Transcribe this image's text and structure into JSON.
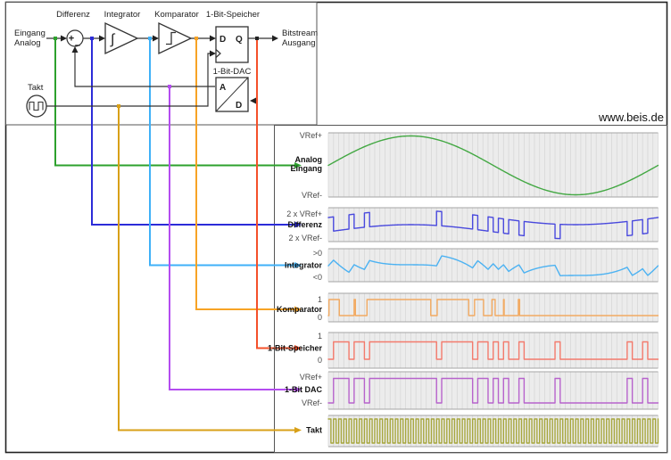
{
  "watermark": "www.beis.de",
  "block_diagram": {
    "input_label_lines": [
      "Eingang",
      "Analog"
    ],
    "output_label_lines": [
      "Bitstream",
      "Ausgang"
    ],
    "blocks": {
      "differenz": "Differenz",
      "integrator": "Integrator",
      "komparator": "Komparator",
      "speicher": "1-Bit-Speicher",
      "dac": "1-Bit-DAC",
      "takt": "Takt"
    },
    "flipflop_pins": {
      "d": "D",
      "q": "Q"
    },
    "dac_pins": {
      "a": "A",
      "d": "D"
    },
    "summer_plus": "+",
    "summer_minus": "−",
    "integrator_glyph": "∫"
  },
  "colors": {
    "wires": {
      "analog": "#2da12d",
      "differenz": "#2c2cd8",
      "integrator": "#3fb1f8",
      "komparator": "#f7a325",
      "speicher": "#f4502a",
      "dac": "#b44cf0",
      "takt": "#d8a018"
    },
    "traces": {
      "analog": "#43a843",
      "differenz": "#4949dd",
      "integrator": "#4cb2f2",
      "komparator": "#f2aa62",
      "speicher": "#f37a6c",
      "dac": "#b763cc",
      "takt": "#a6a63c"
    },
    "grid_bg": "#ececec",
    "grid_line": "#d7d7d7",
    "grid_edge": "#a5a5a5",
    "border": "#555555"
  },
  "chart_data": {
    "type": "line",
    "subtype": "multi-panel timing diagram of a first-order delta-sigma modulator",
    "clock_cycles": 64,
    "sine_periods": 1,
    "integrator_gain": 0.5,
    "integrator_initial": -0.05,
    "bitstream": [
      0,
      1,
      1,
      1,
      0,
      1,
      1,
      0,
      1,
      1,
      1,
      1,
      1,
      1,
      1,
      1,
      1,
      1,
      1,
      1,
      1,
      0,
      1,
      1,
      1,
      1,
      1,
      1,
      0,
      1,
      1,
      0,
      1,
      0,
      1,
      0,
      0,
      1,
      0,
      0,
      0,
      0,
      0,
      0,
      1,
      0,
      0,
      0,
      0,
      0,
      0,
      0,
      0,
      0,
      0,
      0,
      0,
      0,
      1,
      0,
      0,
      1,
      0,
      0
    ],
    "panels": [
      {
        "name": "Analog Eingang",
        "name_lines": [
          "Analog",
          "Eingang"
        ],
        "kind": "sine",
        "top_label": "VRef+",
        "bottom_label": "VRef-"
      },
      {
        "name": "Differenz",
        "name_lines": [
          "Differenz"
        ],
        "kind": "difference",
        "top_label": "2 x VRef+",
        "bottom_label": "2 x VRef-"
      },
      {
        "name": "Integrator",
        "name_lines": [
          "Integrator"
        ],
        "kind": "integral",
        "top_label": ">0",
        "bottom_label": "<0"
      },
      {
        "name": "Komparator",
        "name_lines": [
          "Komparator"
        ],
        "kind": "comparator",
        "top_label": "1",
        "bottom_label": "0"
      },
      {
        "name": "1-Bit-Speicher",
        "name_lines": [
          "1-Bit-Speicher"
        ],
        "kind": "bits",
        "top_label": "1",
        "bottom_label": "0"
      },
      {
        "name": "1-Bit DAC",
        "name_lines": [
          "1-Bit DAC"
        ],
        "kind": "bits",
        "top_label": "VRef+",
        "bottom_label": "VRef-"
      },
      {
        "name": "Takt",
        "name_lines": [
          "Takt"
        ],
        "kind": "clock",
        "top_label": "",
        "bottom_label": ""
      }
    ]
  }
}
